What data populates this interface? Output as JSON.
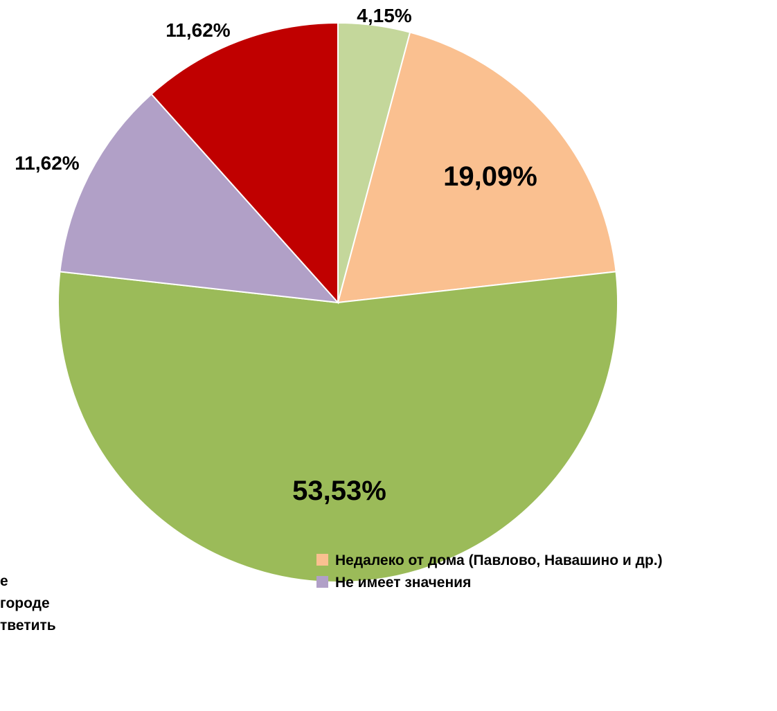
{
  "chart_data": {
    "type": "pie",
    "start_angle_deg": 0,
    "direction": "clockwise",
    "slices": [
      {
        "label": "",
        "value": 4.15,
        "display": "4,15%",
        "color": "#c4d79b"
      },
      {
        "label": "Недалеко от дома (Павлово, Навашино и др.)",
        "value": 19.09,
        "display": "19,09%",
        "color": "#fac090"
      },
      {
        "label": "городе",
        "value": 53.53,
        "display": "53,53%",
        "color": "#9bbb59"
      },
      {
        "label": "Не имеет значения",
        "value": 11.62,
        "display": "11,62%",
        "color": "#b1a0c7"
      },
      {
        "label": "тветить",
        "value": 11.62,
        "display": "11,62%",
        "color": "#c00000"
      }
    ],
    "legend": {
      "position": "bottom",
      "entries_visible": [
        {
          "text": "е",
          "color": "#c4d79b",
          "slice": 0,
          "marker_visible": false
        },
        {
          "text": "Недалеко от дома (Павлово, Навашино и др.)",
          "color": "#fac090",
          "slice": 1,
          "marker_visible": true
        },
        {
          "text": "городе",
          "color": "#9bbb59",
          "slice": 2,
          "marker_visible": false
        },
        {
          "text": "Не имеет значения",
          "color": "#b1a0c7",
          "slice": 3,
          "marker_visible": true
        },
        {
          "text": "тветить",
          "color": "#c00000",
          "slice": 4,
          "marker_visible": false
        }
      ]
    }
  }
}
